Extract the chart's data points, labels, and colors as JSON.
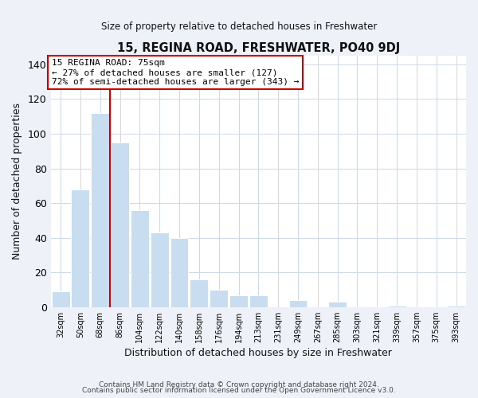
{
  "title": "15, REGINA ROAD, FRESHWATER, PO40 9DJ",
  "subtitle": "Size of property relative to detached houses in Freshwater",
  "xlabel": "Distribution of detached houses by size in Freshwater",
  "ylabel": "Number of detached properties",
  "bar_labels": [
    "32sqm",
    "50sqm",
    "68sqm",
    "86sqm",
    "104sqm",
    "122sqm",
    "140sqm",
    "158sqm",
    "176sqm",
    "194sqm",
    "213sqm",
    "231sqm",
    "249sqm",
    "267sqm",
    "285sqm",
    "303sqm",
    "321sqm",
    "339sqm",
    "357sqm",
    "375sqm",
    "393sqm"
  ],
  "bar_values": [
    9,
    68,
    112,
    95,
    56,
    43,
    40,
    16,
    10,
    7,
    7,
    0,
    4,
    0,
    3,
    0,
    0,
    1,
    0,
    0,
    1
  ],
  "bar_color": "#c8ddef",
  "bar_edge_color": "#ffffff",
  "ylim": [
    0,
    145
  ],
  "yticks": [
    0,
    20,
    40,
    60,
    80,
    100,
    120,
    140
  ],
  "property_line_x": 2.5,
  "property_line_color": "#cc0000",
  "annotation_title": "15 REGINA ROAD: 75sqm",
  "annotation_line1": "← 27% of detached houses are smaller (127)",
  "annotation_line2": "72% of semi-detached houses are larger (343) →",
  "annotation_box_color": "#ffffff",
  "annotation_box_edge": "#cc0000",
  "footnote1": "Contains HM Land Registry data © Crown copyright and database right 2024.",
  "footnote2": "Contains public sector information licensed under the Open Government Licence v3.0.",
  "background_color": "#eef2f8",
  "plot_bg_color": "#ffffff",
  "grid_color": "#ccd8e8"
}
